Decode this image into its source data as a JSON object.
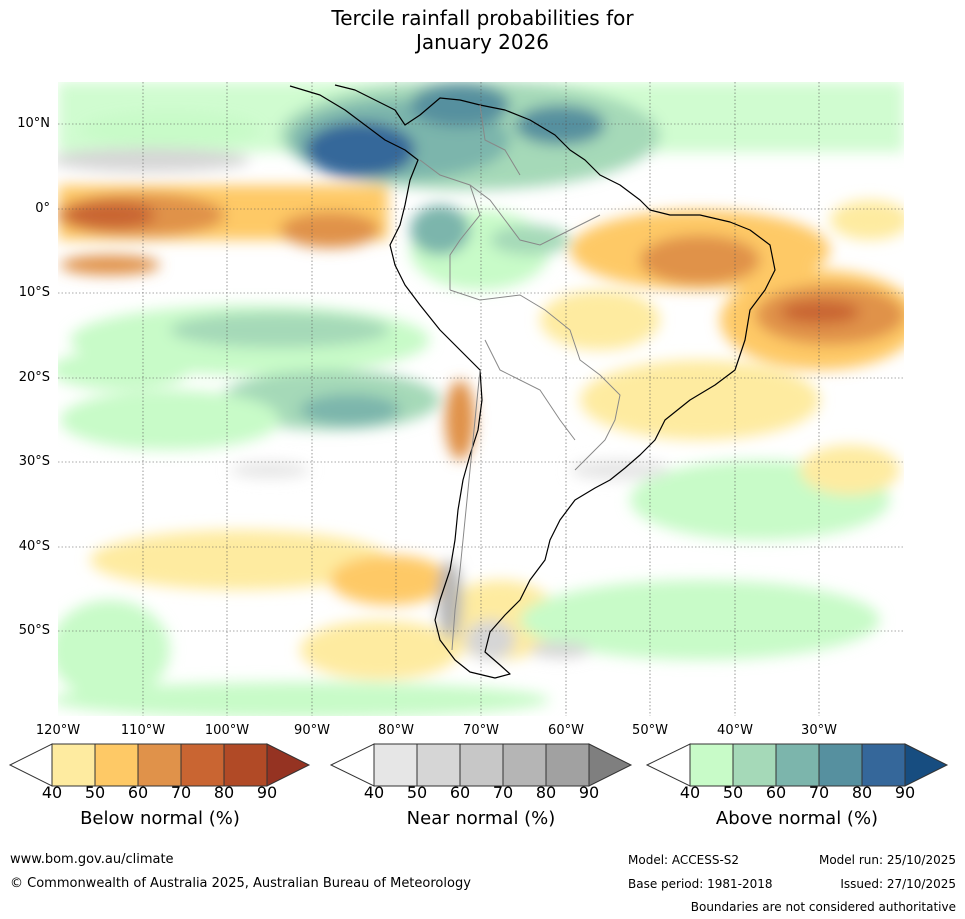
{
  "title": {
    "line1": "Tercile rainfall probabilities for",
    "line2": "January 2026"
  },
  "map": {
    "latitude_labels": [
      "10°N",
      "0°",
      "10°S",
      "20°S",
      "30°S",
      "40°S",
      "50°S"
    ],
    "longitude_labels": [
      "120°W",
      "110°W",
      "100°W",
      "90°W",
      "80°W",
      "70°W",
      "60°W",
      "50°W",
      "40°W",
      "30°W"
    ]
  },
  "legends": [
    {
      "title": "Below normal (%)",
      "ticks": [
        "40",
        "50",
        "60",
        "70",
        "80",
        "90"
      ],
      "colors": [
        "#ffffff",
        "#feeba0",
        "#fec966",
        "#e0924a",
        "#c96532",
        "#b14a26",
        "#953322"
      ]
    },
    {
      "title": "Near normal (%)",
      "ticks": [
        "40",
        "50",
        "60",
        "70",
        "80",
        "90"
      ],
      "colors": [
        "#ffffff",
        "#e6e6e6",
        "#d6d6d6",
        "#c7c7c7",
        "#b5b5b5",
        "#a1a1a1",
        "#7f7f7f"
      ]
    },
    {
      "title": "Above normal (%)",
      "ticks": [
        "40",
        "50",
        "60",
        "70",
        "80",
        "90"
      ],
      "colors": [
        "#ffffff",
        "#c8fbc8",
        "#a5d9b8",
        "#7cb5ac",
        "#56909f",
        "#35679a",
        "#174d80"
      ]
    }
  ],
  "footer": {
    "website": "www.bom.gov.au/climate",
    "copyright": "© Commonwealth of Australia 2025, Australian Bureau of Meteorology",
    "model": "Model: ACCESS-S2",
    "model_run": "Model run: 25/10/2025",
    "base_period": "Base period: 1981-2018",
    "issued": "Issued: 27/10/2025",
    "disclaimer": "Boundaries are not considered authoritative"
  }
}
